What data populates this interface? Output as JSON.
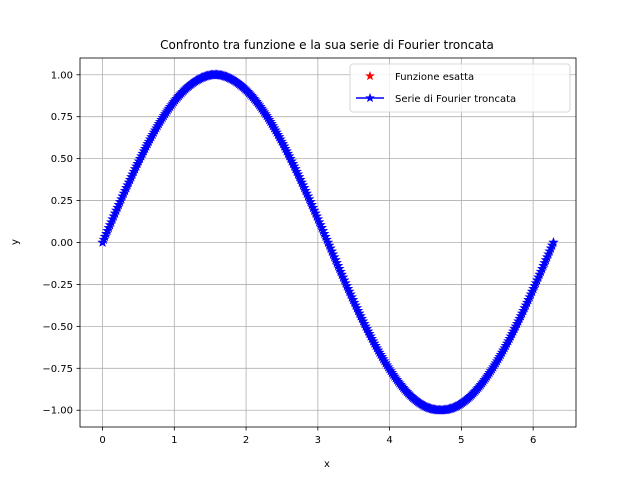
{
  "chart_data": {
    "type": "line",
    "title": "Confronto tra funzione e la sua serie di Fourier troncata",
    "xlabel": "x",
    "ylabel": "y",
    "xlim": [
      -0.3142,
      6.5973
    ],
    "ylim": [
      -1.1,
      1.1
    ],
    "x_ticks": [
      0,
      1,
      2,
      3,
      4,
      5,
      6
    ],
    "y_ticks": [
      -1.0,
      -0.75,
      -0.5,
      -0.25,
      0.0,
      0.25,
      0.5,
      0.75,
      1.0
    ],
    "x_tick_labels": [
      "0",
      "1",
      "2",
      "3",
      "4",
      "5",
      "6"
    ],
    "y_tick_labels": [
      "−1.00",
      "−0.75",
      "−0.50",
      "−0.25",
      "0.00",
      "0.25",
      "0.50",
      "0.75",
      "1.00"
    ],
    "grid": true,
    "legend_position": "top-right",
    "x_range": [
      0,
      6.2832
    ],
    "series": [
      {
        "name": "Funzione esatta",
        "color": "#ff0000",
        "style": "red star markers",
        "function": "sin(x)",
        "x": [
          0,
          0.3142,
          0.6283,
          0.9425,
          1.2566,
          1.5708,
          1.885,
          2.1991,
          2.5133,
          2.8274,
          3.1416,
          3.4558,
          3.7699,
          4.0841,
          4.3982,
          4.7124,
          5.0265,
          5.3407,
          5.6549,
          5.969,
          6.2832
        ],
        "y": [
          0,
          0.309,
          0.5878,
          0.809,
          0.9511,
          1.0,
          0.9511,
          0.809,
          0.5878,
          0.309,
          0,
          -0.309,
          -0.5878,
          -0.809,
          -0.9511,
          -1.0,
          -0.9511,
          -0.809,
          -0.5878,
          -0.309,
          0
        ]
      },
      {
        "name": "Serie di Fourier troncata",
        "color": "#0000ff",
        "style": "blue line with star markers",
        "function": "sin(x)",
        "x": [
          0,
          0.3142,
          0.6283,
          0.9425,
          1.2566,
          1.5708,
          1.885,
          2.1991,
          2.5133,
          2.8274,
          3.1416,
          3.4558,
          3.7699,
          4.0841,
          4.3982,
          4.7124,
          5.0265,
          5.3407,
          5.6549,
          5.969,
          6.2832
        ],
        "y": [
          0,
          0.309,
          0.5878,
          0.809,
          0.9511,
          1.0,
          0.9511,
          0.809,
          0.5878,
          0.309,
          0,
          -0.309,
          -0.5878,
          -0.809,
          -0.9511,
          -1.0,
          -0.9511,
          -0.809,
          -0.5878,
          -0.309,
          0
        ]
      }
    ]
  }
}
